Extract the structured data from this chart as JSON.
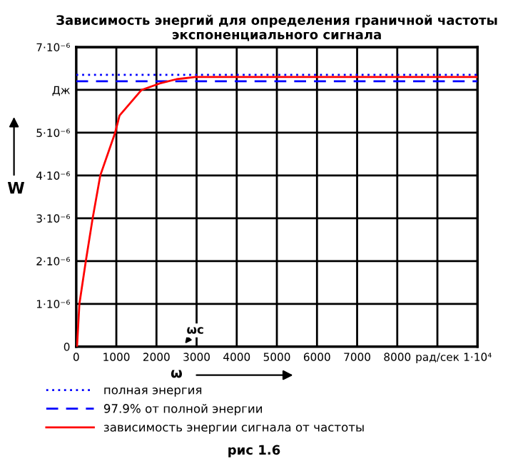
{
  "chart_data": {
    "type": "line",
    "title": "Зависимость энергий для определения граничной частоты\nэкспоненциального сигнала",
    "xlabel": "ω",
    "ylabel": "W",
    "xlim": [
      0,
      10000
    ],
    "xticks": [
      0,
      1000,
      2000,
      3000,
      4000,
      5000,
      6000,
      7000,
      8000,
      {
        "value": 9000,
        "label": "рад/сек"
      },
      {
        "value": 10000,
        "label": "1·10⁴"
      }
    ],
    "ylim": [
      0,
      7e-06
    ],
    "yticks": [
      0,
      {
        "value": 1e-06,
        "label": "1·10⁻⁶"
      },
      {
        "value": 2e-06,
        "label": "2·10⁻⁶"
      },
      {
        "value": 3e-06,
        "label": "3·10⁻⁶"
      },
      {
        "value": 4e-06,
        "label": "4·10⁻⁶"
      },
      {
        "value": 5e-06,
        "label": "5·10⁻⁶"
      },
      {
        "value": 6e-06,
        "label": "Дж"
      },
      {
        "value": 7e-06,
        "label": "7·10⁻⁶"
      }
    ],
    "grid": true,
    "legend": "bottom",
    "series": [
      {
        "name": "полная энергия",
        "color": "#0000ff",
        "line_style": "dotted",
        "x": [
          0,
          10000
        ],
        "values": [
          6.35e-06,
          6.35e-06
        ]
      },
      {
        "name": "97.9% от полной энергии",
        "color": "#0000ff",
        "line_style": "dashed",
        "x": [
          0,
          10000
        ],
        "values": [
          6.2e-06,
          6.2e-06
        ]
      },
      {
        "name": "зависимость энергии сигнала от частоты",
        "color": "#ff0000",
        "line_style": "solid",
        "x": [
          20,
          80,
          240,
          410,
          600,
          970,
          1080,
          1630,
          2080,
          2500,
          2970,
          3970,
          10000
        ],
        "values": [
          0,
          1e-06,
          2e-06,
          3e-06,
          4e-06,
          5e-06,
          5.4e-06,
          6e-06,
          6.15e-06,
          6.25e-06,
          6.3e-06,
          6.3e-06,
          6.3e-06
        ]
      }
    ],
    "annotations": [
      "ωc",
      "рис 1.6"
    ]
  }
}
